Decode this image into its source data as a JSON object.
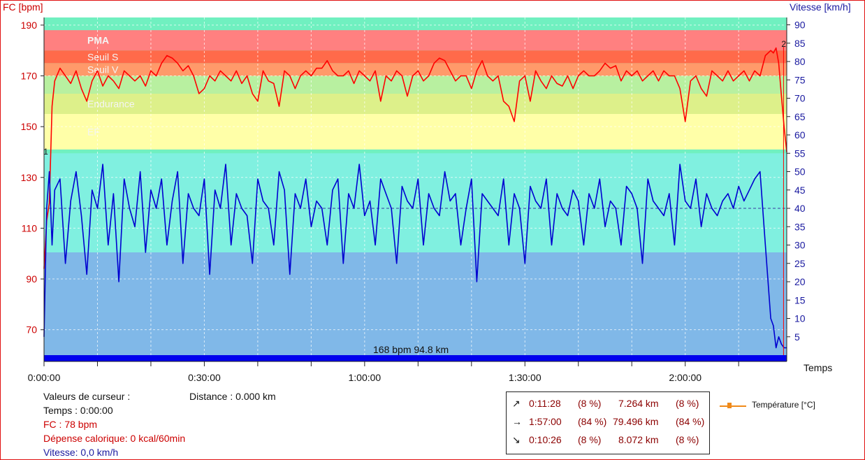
{
  "chart_data": {
    "type": "line",
    "y_left_label": "FC [bpm]",
    "y_right_label": "Vitesse [km/h]",
    "x_label": "Temps",
    "xlim_minutes": [
      0,
      139
    ],
    "ylim_left": [
      60,
      193
    ],
    "ylim_right": [
      0,
      92
    ],
    "left_ticks": [
      70,
      90,
      110,
      130,
      150,
      170,
      190
    ],
    "right_ticks": [
      5,
      10,
      15,
      20,
      25,
      30,
      35,
      40,
      45,
      50,
      55,
      60,
      65,
      70,
      75,
      80,
      85,
      90
    ],
    "x_ticks": [
      "0:00:00",
      "0:30:00",
      "1:00:00",
      "1:30:00",
      "2:00:00"
    ],
    "x_tick_minutes": [
      0,
      30,
      60,
      90,
      120
    ],
    "grid": true,
    "zones": [
      {
        "label": "PMA",
        "from": 180,
        "to": 188,
        "color": "#ff8080"
      },
      {
        "label": "Seuil S",
        "from": 175,
        "to": 180,
        "color": "#ff6a4a"
      },
      {
        "label": "Seuil V",
        "from": 170,
        "to": 175,
        "color": "#ff9a6a"
      },
      {
        "label": "",
        "from": 163,
        "to": 170,
        "color": "#b8f0a0"
      },
      {
        "label": "Endurance",
        "from": 155,
        "to": 163,
        "color": "#ddf08a"
      },
      {
        "label": "EF",
        "from": 141,
        "to": 155,
        "color": "#ffffa8"
      }
    ],
    "speed_zones": [
      {
        "from": 28,
        "to": 55,
        "color": "#80f0e0"
      },
      {
        "from": 0,
        "to": 28,
        "color": "#80b8e8"
      }
    ],
    "top_band_color": "#70f0c0",
    "series": [
      {
        "name": "FC",
        "axis": "left",
        "color": "#ff0000",
        "x": [
          0,
          0.5,
          1,
          1.5,
          2,
          3,
          4,
          5,
          6,
          7,
          8,
          9,
          10,
          11,
          12,
          13,
          14,
          15,
          16,
          17,
          18,
          19,
          20,
          21,
          22,
          23,
          24,
          25,
          26,
          27,
          28,
          29,
          30,
          31,
          32,
          33,
          34,
          35,
          36,
          37,
          38,
          39,
          40,
          41,
          42,
          43,
          44,
          45,
          46,
          47,
          48,
          49,
          50,
          51,
          52,
          53,
          54,
          55,
          56,
          57,
          58,
          59,
          60,
          61,
          62,
          63,
          64,
          65,
          66,
          67,
          68,
          69,
          70,
          71,
          72,
          73,
          74,
          75,
          76,
          77,
          78,
          79,
          80,
          81,
          82,
          83,
          84,
          85,
          86,
          87,
          88,
          89,
          90,
          91,
          92,
          93,
          94,
          95,
          96,
          97,
          98,
          99,
          100,
          101,
          102,
          103,
          104,
          105,
          106,
          107,
          108,
          109,
          110,
          111,
          112,
          113,
          114,
          115,
          116,
          117,
          118,
          119,
          120,
          121,
          122,
          123,
          124,
          125,
          126,
          127,
          128,
          129,
          130,
          131,
          132,
          133,
          134,
          135,
          136,
          136.5,
          137,
          137.5,
          138,
          138.5,
          139
        ],
        "values": [
          94,
          113,
          120,
          158,
          168,
          173,
          170,
          167,
          172,
          165,
          160,
          168,
          172,
          166,
          170,
          168,
          165,
          172,
          170,
          168,
          170,
          166,
          172,
          170,
          175,
          178,
          177,
          175,
          172,
          174,
          170,
          163,
          165,
          170,
          168,
          172,
          170,
          168,
          172,
          167,
          170,
          163,
          160,
          172,
          168,
          167,
          158,
          172,
          170,
          165,
          170,
          172,
          170,
          173,
          173,
          176,
          172,
          170,
          170,
          172,
          167,
          172,
          170,
          168,
          172,
          160,
          170,
          168,
          172,
          170,
          162,
          170,
          172,
          168,
          170,
          175,
          177,
          176,
          172,
          168,
          170,
          170,
          165,
          172,
          176,
          170,
          168,
          170,
          160,
          158,
          152,
          168,
          170,
          160,
          172,
          168,
          165,
          170,
          167,
          166,
          170,
          165,
          170,
          172,
          170,
          170,
          172,
          175,
          173,
          174,
          168,
          172,
          170,
          172,
          168,
          170,
          172,
          168,
          172,
          170,
          170,
          165,
          152,
          168,
          170,
          165,
          162,
          172,
          170,
          168,
          172,
          168,
          170,
          172,
          168,
          172,
          170,
          178,
          180,
          179,
          181,
          175,
          162,
          150,
          140
        ]
      },
      {
        "name": "Vitesse",
        "axis": "right",
        "color": "#0000d0",
        "x": [
          0,
          0.5,
          1,
          1.5,
          2,
          3,
          4,
          5,
          6,
          7,
          8,
          9,
          10,
          11,
          12,
          13,
          14,
          15,
          16,
          17,
          18,
          19,
          20,
          21,
          22,
          23,
          24,
          25,
          26,
          27,
          28,
          29,
          30,
          31,
          32,
          33,
          34,
          35,
          36,
          37,
          38,
          39,
          40,
          41,
          42,
          43,
          44,
          45,
          46,
          47,
          48,
          49,
          50,
          51,
          52,
          53,
          54,
          55,
          56,
          57,
          58,
          59,
          60,
          61,
          62,
          63,
          64,
          65,
          66,
          67,
          68,
          69,
          70,
          71,
          72,
          73,
          74,
          75,
          76,
          77,
          78,
          79,
          80,
          81,
          82,
          83,
          84,
          85,
          86,
          87,
          88,
          89,
          90,
          91,
          92,
          93,
          94,
          95,
          96,
          97,
          98,
          99,
          100,
          101,
          102,
          103,
          104,
          105,
          106,
          107,
          108,
          109,
          110,
          111,
          112,
          113,
          114,
          115,
          116,
          117,
          118,
          119,
          120,
          121,
          122,
          123,
          124,
          125,
          126,
          127,
          128,
          129,
          130,
          131,
          132,
          133,
          134,
          135,
          136,
          136.5,
          137,
          137.5,
          138,
          138.5,
          139
        ],
        "values": [
          5,
          40,
          50,
          30,
          45,
          48,
          25,
          42,
          50,
          38,
          22,
          45,
          40,
          52,
          30,
          44,
          20,
          48,
          40,
          35,
          50,
          28,
          45,
          40,
          48,
          30,
          42,
          50,
          25,
          44,
          40,
          38,
          48,
          22,
          45,
          40,
          52,
          30,
          44,
          40,
          38,
          25,
          48,
          42,
          40,
          30,
          50,
          45,
          22,
          44,
          40,
          48,
          35,
          42,
          40,
          30,
          45,
          48,
          25,
          44,
          40,
          52,
          38,
          42,
          30,
          48,
          44,
          40,
          25,
          46,
          42,
          40,
          48,
          30,
          44,
          40,
          38,
          50,
          42,
          44,
          30,
          40,
          48,
          20,
          44,
          42,
          40,
          38,
          48,
          30,
          44,
          40,
          25,
          46,
          42,
          40,
          48,
          30,
          44,
          40,
          38,
          45,
          42,
          30,
          44,
          40,
          48,
          35,
          42,
          40,
          30,
          46,
          44,
          40,
          25,
          48,
          42,
          40,
          38,
          44,
          30,
          52,
          42,
          40,
          48,
          35,
          44,
          40,
          38,
          42,
          44,
          40,
          46,
          42,
          45,
          48,
          50,
          30,
          10,
          8,
          2,
          5,
          3,
          2,
          2
        ]
      }
    ],
    "markers": [
      {
        "text": "1",
        "x": 0.3,
        "y": 139
      },
      {
        "text": "2",
        "x": 138.4,
        "y": 181.5
      }
    ],
    "cursor_dash_speed": 40,
    "annotation": "168 bpm 94.8 km"
  },
  "cursor": {
    "title": "Valeurs de curseur :",
    "distance": "Distance : 0.000 km",
    "time": "Temps : 0:00:00",
    "hr": "FC : 78 bpm",
    "calories": "Dépense calorique: 0 kcal/60min",
    "speed": "Vitesse: 0,0 km/h"
  },
  "stats": [
    {
      "arrow": "↗",
      "time": "0:11:28",
      "pct1": "(8 %)",
      "dist": "7.264 km",
      "pct2": "(8 %)"
    },
    {
      "arrow": "→",
      "time": "1:57:00",
      "pct1": "(84 %)",
      "dist": "79.496 km",
      "pct2": "(84 %)"
    },
    {
      "arrow": "↘",
      "time": "0:10:26",
      "pct1": "(8 %)",
      "dist": "8.072 km",
      "pct2": "(8 %)"
    }
  ],
  "legend": {
    "temperature": "Température [°C]"
  }
}
